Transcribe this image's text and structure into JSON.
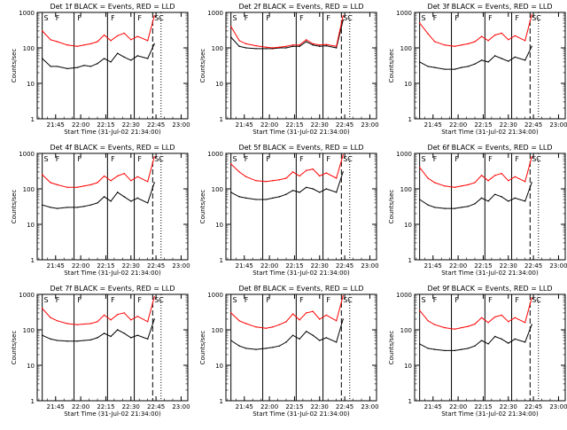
{
  "figure": {
    "xlabel": "Start Time (31-Jul-02 21:34:00)",
    "ylabel": "Counts/sec",
    "x_tick_labels": [
      "21:45",
      "22:00",
      "22:15",
      "22:30",
      "22:45",
      "23:00"
    ],
    "y_tick_labels": [
      "1",
      "10",
      "100",
      "1000"
    ],
    "marker_labels": [
      "S",
      "F",
      "F",
      "F",
      "F",
      "SC"
    ]
  },
  "colors": {
    "events": "#000000",
    "lld": "#ff0000",
    "axis": "#000000",
    "background": "#ffffff"
  },
  "chart_data": [
    {
      "type": "line",
      "title": "Det 1f BLACK = Events, RED = LLD",
      "x_unit": "minutes after 21:34:00",
      "xlim": [
        0,
        90
      ],
      "ylim": [
        1,
        1000
      ],
      "yscale": "log",
      "series": [
        {
          "name": "BLACK = Events",
          "x": [
            3,
            8,
            12,
            18,
            24,
            28,
            32,
            36,
            40,
            44,
            48,
            52,
            56,
            60,
            66,
            70
          ],
          "y": [
            50,
            30,
            30,
            26,
            28,
            32,
            30,
            36,
            50,
            40,
            70,
            55,
            45,
            60,
            50,
            130
          ]
        },
        {
          "name": "RED = LLD",
          "x": [
            3,
            8,
            12,
            18,
            24,
            28,
            32,
            36,
            40,
            44,
            48,
            52,
            56,
            60,
            66,
            70
          ],
          "y": [
            300,
            170,
            150,
            120,
            110,
            120,
            130,
            150,
            230,
            160,
            220,
            260,
            170,
            210,
            160,
            800
          ]
        }
      ]
    },
    {
      "type": "line",
      "title": "Det 2f BLACK = Events, RED = LLD",
      "x_unit": "minutes after 21:34:00",
      "xlim": [
        0,
        90
      ],
      "ylim": [
        1,
        1000
      ],
      "yscale": "log",
      "series": [
        {
          "name": "BLACK = Events",
          "x": [
            3,
            8,
            12,
            18,
            24,
            28,
            32,
            36,
            40,
            44,
            48,
            52,
            56,
            60,
            66,
            70
          ],
          "y": [
            200,
            110,
            100,
            95,
            95,
            95,
            100,
            100,
            110,
            110,
            150,
            120,
            110,
            115,
            100,
            600
          ]
        },
        {
          "name": "RED = LLD",
          "x": [
            3,
            8,
            12,
            18,
            24,
            28,
            32,
            36,
            40,
            44,
            48,
            52,
            56,
            60,
            66,
            70
          ],
          "y": [
            400,
            160,
            130,
            115,
            105,
            100,
            105,
            110,
            120,
            120,
            170,
            130,
            120,
            125,
            110,
            800
          ]
        }
      ]
    },
    {
      "type": "line",
      "title": "Det 3f BLACK = Events, RED = LLD",
      "x_unit": "minutes after 21:34:00",
      "xlim": [
        0,
        90
      ],
      "ylim": [
        1,
        1000
      ],
      "yscale": "log",
      "series": [
        {
          "name": "BLACK = Events",
          "x": [
            3,
            8,
            12,
            18,
            24,
            28,
            32,
            36,
            40,
            44,
            48,
            52,
            56,
            60,
            66,
            70
          ],
          "y": [
            40,
            30,
            28,
            25,
            25,
            28,
            30,
            35,
            45,
            40,
            60,
            50,
            42,
            55,
            45,
            110
          ]
        },
        {
          "name": "RED = LLD",
          "x": [
            3,
            8,
            12,
            18,
            24,
            28,
            32,
            36,
            40,
            44,
            48,
            52,
            56,
            60,
            66,
            70
          ],
          "y": [
            500,
            250,
            150,
            120,
            110,
            120,
            130,
            150,
            210,
            160,
            230,
            260,
            170,
            220,
            160,
            850
          ]
        }
      ]
    },
    {
      "type": "line",
      "title": "Det 4f BLACK = Events, RED = LLD",
      "x_unit": "minutes after 21:34:00",
      "xlim": [
        0,
        90
      ],
      "ylim": [
        1,
        1000
      ],
      "yscale": "log",
      "series": [
        {
          "name": "BLACK = Events",
          "x": [
            3,
            8,
            12,
            18,
            24,
            28,
            32,
            36,
            40,
            44,
            48,
            52,
            56,
            60,
            66,
            70
          ],
          "y": [
            35,
            30,
            28,
            30,
            30,
            32,
            35,
            40,
            60,
            45,
            80,
            60,
            45,
            55,
            40,
            150
          ]
        },
        {
          "name": "RED = LLD",
          "x": [
            3,
            8,
            12,
            18,
            24,
            28,
            32,
            36,
            40,
            44,
            48,
            52,
            56,
            60,
            66,
            70
          ],
          "y": [
            250,
            150,
            130,
            110,
            110,
            120,
            130,
            150,
            230,
            170,
            230,
            270,
            170,
            220,
            160,
            800
          ]
        }
      ]
    },
    {
      "type": "line",
      "title": "Det 5f BLACK = Events, RED = LLD",
      "x_unit": "minutes after 21:34:00",
      "xlim": [
        0,
        90
      ],
      "ylim": [
        1,
        1000
      ],
      "yscale": "log",
      "series": [
        {
          "name": "BLACK = Events",
          "x": [
            3,
            8,
            12,
            18,
            24,
            28,
            32,
            36,
            40,
            44,
            48,
            52,
            56,
            60,
            66,
            70
          ],
          "y": [
            80,
            60,
            55,
            50,
            50,
            55,
            60,
            70,
            90,
            80,
            110,
            100,
            80,
            100,
            80,
            300
          ]
        },
        {
          "name": "RED = LLD",
          "x": [
            3,
            8,
            12,
            18,
            24,
            28,
            32,
            36,
            40,
            44,
            48,
            52,
            56,
            60,
            66,
            70
          ],
          "y": [
            500,
            300,
            220,
            170,
            160,
            170,
            180,
            200,
            300,
            230,
            330,
            360,
            230,
            280,
            200,
            900
          ]
        }
      ]
    },
    {
      "type": "line",
      "title": "Det 6f BLACK = Events, RED = LLD",
      "x_unit": "minutes after 21:34:00",
      "xlim": [
        0,
        90
      ],
      "ylim": [
        1,
        1000
      ],
      "yscale": "log",
      "series": [
        {
          "name": "BLACK = Events",
          "x": [
            3,
            8,
            12,
            18,
            24,
            28,
            32,
            36,
            40,
            44,
            48,
            52,
            56,
            60,
            66,
            70
          ],
          "y": [
            50,
            35,
            30,
            28,
            28,
            30,
            32,
            38,
            55,
            45,
            70,
            60,
            45,
            55,
            45,
            150
          ]
        },
        {
          "name": "RED = LLD",
          "x": [
            3,
            8,
            12,
            18,
            24,
            28,
            32,
            36,
            40,
            44,
            48,
            52,
            56,
            60,
            66,
            70
          ],
          "y": [
            400,
            200,
            150,
            120,
            110,
            120,
            130,
            150,
            240,
            170,
            240,
            270,
            170,
            220,
            160,
            800
          ]
        }
      ]
    },
    {
      "type": "line",
      "title": "Det 7f BLACK = Events, RED = LLD",
      "x_unit": "minutes after 21:34:00",
      "xlim": [
        0,
        90
      ],
      "ylim": [
        1,
        1000
      ],
      "yscale": "log",
      "series": [
        {
          "name": "BLACK = Events",
          "x": [
            3,
            8,
            12,
            18,
            24,
            28,
            32,
            36,
            40,
            44,
            48,
            52,
            56,
            60,
            66,
            70
          ],
          "y": [
            70,
            55,
            50,
            48,
            48,
            50,
            52,
            60,
            80,
            65,
            100,
            80,
            60,
            70,
            55,
            200
          ]
        },
        {
          "name": "RED = LLD",
          "x": [
            3,
            8,
            12,
            18,
            24,
            28,
            32,
            36,
            40,
            44,
            48,
            52,
            56,
            60,
            66,
            70
          ],
          "y": [
            400,
            220,
            180,
            150,
            140,
            145,
            150,
            170,
            260,
            190,
            270,
            300,
            190,
            240,
            170,
            850
          ]
        }
      ]
    },
    {
      "type": "line",
      "title": "Det 8f BLACK = Events, RED = LLD",
      "x_unit": "minutes after 21:34:00",
      "xlim": [
        0,
        90
      ],
      "ylim": [
        1,
        1000
      ],
      "yscale": "log",
      "series": [
        {
          "name": "BLACK = Events",
          "x": [
            3,
            8,
            12,
            18,
            24,
            28,
            32,
            36,
            40,
            44,
            48,
            52,
            56,
            60,
            66,
            70
          ],
          "y": [
            50,
            35,
            30,
            28,
            30,
            32,
            35,
            45,
            70,
            55,
            90,
            70,
            50,
            60,
            45,
            200
          ]
        },
        {
          "name": "RED = LLD",
          "x": [
            3,
            8,
            12,
            18,
            24,
            28,
            32,
            36,
            40,
            44,
            48,
            52,
            56,
            60,
            66,
            70
          ],
          "y": [
            300,
            180,
            150,
            120,
            110,
            120,
            140,
            170,
            280,
            190,
            300,
            330,
            200,
            260,
            180,
            900
          ]
        }
      ]
    },
    {
      "type": "line",
      "title": "Det 9f BLACK = Events, RED = LLD",
      "x_unit": "minutes after 21:34:00",
      "xlim": [
        0,
        90
      ],
      "ylim": [
        1,
        1000
      ],
      "yscale": "log",
      "series": [
        {
          "name": "BLACK = Events",
          "x": [
            3,
            8,
            12,
            18,
            24,
            28,
            32,
            36,
            40,
            44,
            48,
            52,
            56,
            60,
            66,
            70
          ],
          "y": [
            40,
            30,
            28,
            26,
            26,
            28,
            30,
            35,
            50,
            40,
            65,
            55,
            42,
            55,
            45,
            140
          ]
        },
        {
          "name": "RED = LLD",
          "x": [
            3,
            8,
            12,
            18,
            24,
            28,
            32,
            36,
            40,
            44,
            48,
            52,
            56,
            60,
            66,
            70
          ],
          "y": [
            350,
            180,
            140,
            115,
            105,
            115,
            125,
            145,
            220,
            160,
            230,
            260,
            170,
            220,
            160,
            800
          ]
        }
      ]
    }
  ],
  "markers": {
    "x_unit": "minutes after 21:34:00",
    "solid": [
      3,
      22,
      42,
      58
    ],
    "dashed": [
      69
    ],
    "dotted": [
      74
    ],
    "dashdot": [
      90
    ]
  }
}
